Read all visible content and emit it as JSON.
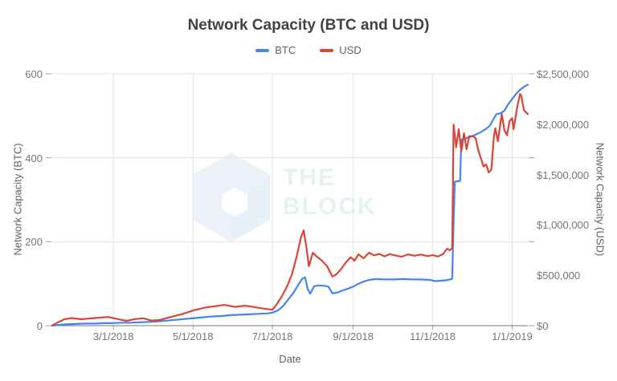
{
  "chart": {
    "title": "Network Capacity (BTC and USD)",
    "x_axis_title": "Date",
    "y_left_title": "Network Capacity (BTC)",
    "y_right_title": "Network Capacity (USD)"
  },
  "legend": {
    "items": [
      {
        "label": "BTC",
        "color": "#4285f4"
      },
      {
        "label": "USD",
        "color": "#db4437"
      }
    ]
  },
  "watermark": {
    "icon": "block-cube-icon",
    "line1": "THE",
    "line2": "BLOCK"
  },
  "colors": {
    "grid": "#e3e3e3",
    "baseline": "#757575",
    "tick_mark": "#9e9e9e",
    "title_text": "#424242",
    "tick_text": "#757575",
    "btc_line": "#4285f4",
    "usd_line": "#db4437"
  },
  "axes": {
    "x_ticks": [
      {
        "date": "2018-03-01",
        "label": "3/1/2018"
      },
      {
        "date": "2018-05-01",
        "label": "5/1/2018"
      },
      {
        "date": "2018-07-01",
        "label": "7/1/2018"
      },
      {
        "date": "2018-09-01",
        "label": "9/1/2018"
      },
      {
        "date": "2018-11-01",
        "label": "11/1/2018"
      },
      {
        "date": "2019-01-01",
        "label": "1/1/2019"
      }
    ],
    "y_left_ticks": [
      {
        "value": 0,
        "label": "0"
      },
      {
        "value": 200,
        "label": "200"
      },
      {
        "value": 400,
        "label": "400"
      },
      {
        "value": 600,
        "label": "600"
      }
    ],
    "y_right_ticks": [
      {
        "value": 0,
        "label": "$0"
      },
      {
        "value": 500000,
        "label": "$500,000"
      },
      {
        "value": 1000000,
        "label": "$1,000,000"
      },
      {
        "value": 1500000,
        "label": "$1,500,000"
      },
      {
        "value": 2000000,
        "label": "$2,000,000"
      },
      {
        "value": 2500000,
        "label": "$2,500,000"
      }
    ]
  },
  "chart_data": {
    "type": "line",
    "title": "Network Capacity (BTC and USD)",
    "xlabel": "Date",
    "ylabel_left": "Network Capacity (BTC)",
    "ylabel_right": "Network Capacity (USD)",
    "x_domain": [
      "2018-01-13",
      "2019-01-13"
    ],
    "y_left_range": [
      0,
      600
    ],
    "y_right_range": [
      0,
      2500000
    ],
    "grid": true,
    "legend_position": "top",
    "series": [
      {
        "name": "BTC",
        "axis": "left",
        "color": "#4285f4",
        "points": [
          [
            "2018-01-13",
            0
          ],
          [
            "2018-01-18",
            2
          ],
          [
            "2018-01-24",
            3
          ],
          [
            "2018-01-31",
            4
          ],
          [
            "2018-02-07",
            5
          ],
          [
            "2018-02-14",
            5
          ],
          [
            "2018-02-21",
            6
          ],
          [
            "2018-02-28",
            6
          ],
          [
            "2018-03-07",
            7
          ],
          [
            "2018-03-14",
            7
          ],
          [
            "2018-03-21",
            8
          ],
          [
            "2018-03-28",
            9
          ],
          [
            "2018-04-04",
            10
          ],
          [
            "2018-04-11",
            12
          ],
          [
            "2018-04-18",
            14
          ],
          [
            "2018-04-25",
            16
          ],
          [
            "2018-05-02",
            18
          ],
          [
            "2018-05-09",
            20
          ],
          [
            "2018-05-16",
            22
          ],
          [
            "2018-05-23",
            23
          ],
          [
            "2018-05-30",
            25
          ],
          [
            "2018-06-06",
            26
          ],
          [
            "2018-06-13",
            27
          ],
          [
            "2018-06-20",
            28
          ],
          [
            "2018-06-27",
            29
          ],
          [
            "2018-07-01",
            31
          ],
          [
            "2018-07-05",
            36
          ],
          [
            "2018-07-09",
            46
          ],
          [
            "2018-07-13",
            62
          ],
          [
            "2018-07-17",
            78
          ],
          [
            "2018-07-21",
            98
          ],
          [
            "2018-07-24",
            112
          ],
          [
            "2018-07-26",
            115
          ],
          [
            "2018-07-28",
            88
          ],
          [
            "2018-07-30",
            76
          ],
          [
            "2018-08-02",
            94
          ],
          [
            "2018-08-06",
            96
          ],
          [
            "2018-08-10",
            95
          ],
          [
            "2018-08-13",
            93
          ],
          [
            "2018-08-16",
            77
          ],
          [
            "2018-08-20",
            79
          ],
          [
            "2018-08-24",
            84
          ],
          [
            "2018-08-28",
            88
          ],
          [
            "2018-09-01",
            93
          ],
          [
            "2018-09-05",
            100
          ],
          [
            "2018-09-09",
            105
          ],
          [
            "2018-09-13",
            109
          ],
          [
            "2018-09-18",
            111
          ],
          [
            "2018-09-25",
            110
          ],
          [
            "2018-10-02",
            110
          ],
          [
            "2018-10-09",
            111
          ],
          [
            "2018-10-16",
            110
          ],
          [
            "2018-10-23",
            110
          ],
          [
            "2018-10-30",
            109
          ],
          [
            "2018-11-03",
            106
          ],
          [
            "2018-11-07",
            107
          ],
          [
            "2018-11-11",
            108
          ],
          [
            "2018-11-14",
            110
          ],
          [
            "2018-11-16",
            112
          ],
          [
            "2018-11-17",
            248
          ],
          [
            "2018-11-18",
            343
          ],
          [
            "2018-11-20",
            344
          ],
          [
            "2018-11-22",
            345
          ],
          [
            "2018-11-23",
            443
          ],
          [
            "2018-11-26",
            446
          ],
          [
            "2018-11-30",
            450
          ],
          [
            "2018-12-04",
            455
          ],
          [
            "2018-12-08",
            461
          ],
          [
            "2018-12-12",
            469
          ],
          [
            "2018-12-15",
            477
          ],
          [
            "2018-12-18",
            494
          ],
          [
            "2018-12-20",
            504
          ],
          [
            "2018-12-23",
            506
          ],
          [
            "2018-12-26",
            512
          ],
          [
            "2018-12-29",
            528
          ],
          [
            "2019-01-01",
            540
          ],
          [
            "2019-01-04",
            552
          ],
          [
            "2019-01-07",
            562
          ],
          [
            "2019-01-10",
            569
          ],
          [
            "2019-01-13",
            574
          ]
        ]
      },
      {
        "name": "USD",
        "axis": "right",
        "color": "#db4437",
        "points": [
          [
            "2018-01-13",
            2000
          ],
          [
            "2018-01-17",
            30000
          ],
          [
            "2018-01-22",
            62000
          ],
          [
            "2018-01-28",
            76000
          ],
          [
            "2018-02-04",
            64000
          ],
          [
            "2018-02-11",
            72000
          ],
          [
            "2018-02-18",
            80000
          ],
          [
            "2018-02-25",
            86000
          ],
          [
            "2018-03-04",
            66000
          ],
          [
            "2018-03-11",
            48000
          ],
          [
            "2018-03-18",
            66000
          ],
          [
            "2018-03-24",
            73000
          ],
          [
            "2018-03-30",
            50000
          ],
          [
            "2018-04-06",
            58000
          ],
          [
            "2018-04-14",
            86000
          ],
          [
            "2018-04-22",
            112000
          ],
          [
            "2018-05-01",
            150000
          ],
          [
            "2018-05-09",
            176000
          ],
          [
            "2018-05-17",
            192000
          ],
          [
            "2018-05-25",
            206000
          ],
          [
            "2018-06-02",
            186000
          ],
          [
            "2018-06-10",
            198000
          ],
          [
            "2018-06-16",
            186000
          ],
          [
            "2018-06-23",
            172000
          ],
          [
            "2018-07-01",
            158000
          ],
          [
            "2018-07-04",
            207000
          ],
          [
            "2018-07-08",
            287000
          ],
          [
            "2018-07-12",
            382000
          ],
          [
            "2018-07-16",
            509000
          ],
          [
            "2018-07-20",
            708000
          ],
          [
            "2018-07-23",
            884000
          ],
          [
            "2018-07-25",
            947000
          ],
          [
            "2018-07-27",
            780000
          ],
          [
            "2018-07-29",
            590000
          ],
          [
            "2018-08-01",
            724000
          ],
          [
            "2018-08-04",
            686000
          ],
          [
            "2018-08-08",
            645000
          ],
          [
            "2018-08-12",
            590000
          ],
          [
            "2018-08-16",
            487000
          ],
          [
            "2018-08-19",
            509000
          ],
          [
            "2018-08-22",
            550000
          ],
          [
            "2018-08-26",
            621000
          ],
          [
            "2018-08-30",
            680000
          ],
          [
            "2018-09-02",
            645000
          ],
          [
            "2018-09-05",
            708000
          ],
          [
            "2018-09-09",
            669000
          ],
          [
            "2018-09-13",
            724000
          ],
          [
            "2018-09-17",
            698000
          ],
          [
            "2018-09-21",
            712000
          ],
          [
            "2018-09-25",
            688000
          ],
          [
            "2018-09-29",
            710000
          ],
          [
            "2018-10-03",
            698000
          ],
          [
            "2018-10-08",
            684000
          ],
          [
            "2018-10-13",
            708000
          ],
          [
            "2018-10-18",
            694000
          ],
          [
            "2018-10-23",
            706000
          ],
          [
            "2018-10-28",
            690000
          ],
          [
            "2018-11-01",
            700000
          ],
          [
            "2018-11-05",
            686000
          ],
          [
            "2018-11-09",
            712000
          ],
          [
            "2018-11-12",
            764000
          ],
          [
            "2018-11-14",
            748000
          ],
          [
            "2018-11-16",
            770000
          ],
          [
            "2018-11-17",
            1995000
          ],
          [
            "2018-11-19",
            1770000
          ],
          [
            "2018-11-21",
            1950000
          ],
          [
            "2018-11-23",
            1730000
          ],
          [
            "2018-11-25",
            1910000
          ],
          [
            "2018-11-27",
            1750000
          ],
          [
            "2018-11-29",
            1880000
          ],
          [
            "2018-12-02",
            1880000
          ],
          [
            "2018-12-04",
            1860000
          ],
          [
            "2018-12-06",
            1740000
          ],
          [
            "2018-12-08",
            1660000
          ],
          [
            "2018-12-10",
            1580000
          ],
          [
            "2018-12-12",
            1600000
          ],
          [
            "2018-12-14",
            1520000
          ],
          [
            "2018-12-16",
            1550000
          ],
          [
            "2018-12-18",
            1880000
          ],
          [
            "2018-12-19",
            1960000
          ],
          [
            "2018-12-21",
            1830000
          ],
          [
            "2018-12-24",
            2100000
          ],
          [
            "2018-12-26",
            1940000
          ],
          [
            "2018-12-28",
            1890000
          ],
          [
            "2018-12-30",
            2030000
          ],
          [
            "2019-01-01",
            2060000
          ],
          [
            "2019-01-02",
            1950000
          ],
          [
            "2019-01-05",
            2180000
          ],
          [
            "2019-01-07",
            2300000
          ],
          [
            "2019-01-08",
            2280000
          ],
          [
            "2019-01-10",
            2140000
          ],
          [
            "2019-01-13",
            2100000
          ]
        ]
      }
    ]
  }
}
